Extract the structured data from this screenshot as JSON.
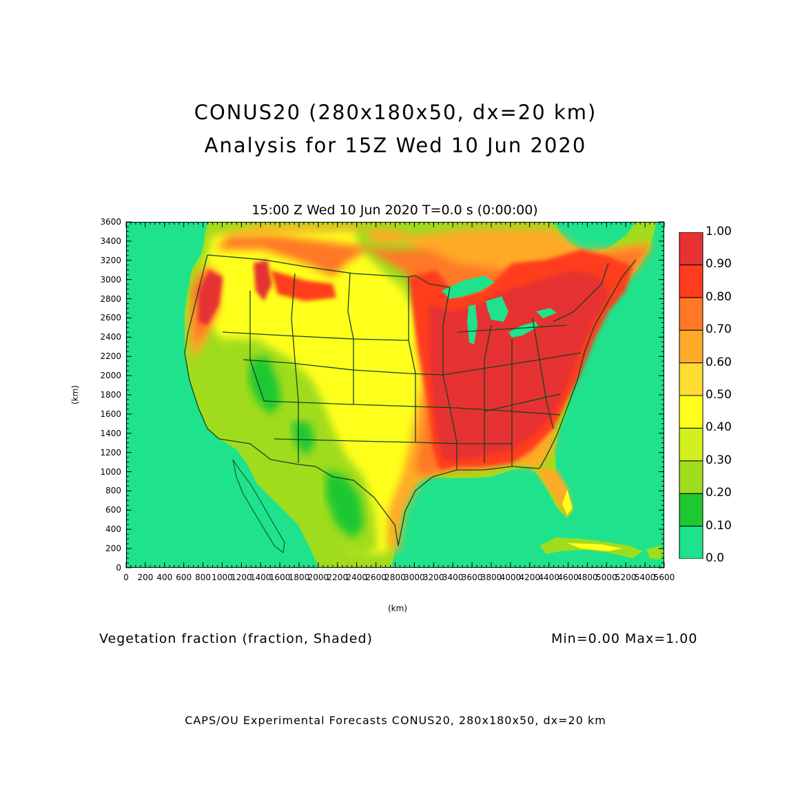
{
  "header": {
    "title_line1": "CONUS20 (280x180x50, dx=20 km)",
    "title_line2": "Analysis for 15Z Wed 10 Jun 2020"
  },
  "plot": {
    "time_title": "15:00 Z Wed 10 Jun 2020    T=0.0 s (0:00:00)",
    "xlabel": "(km)",
    "ylabel": "(km)",
    "xticks": [
      "0",
      "200",
      "400",
      "600",
      "800",
      "1000",
      "1200",
      "1400",
      "1600",
      "1800",
      "2000",
      "2200",
      "2400",
      "2600",
      "2800",
      "3000",
      "3200",
      "3400",
      "3600",
      "3800",
      "4000",
      "4200",
      "4400",
      "4600",
      "4800",
      "5000",
      "5200",
      "5400",
      "5600"
    ],
    "yticks": [
      "0",
      "200",
      "400",
      "600",
      "800",
      "1000",
      "1200",
      "1400",
      "1600",
      "1800",
      "2000",
      "2200",
      "2400",
      "2600",
      "2800",
      "3000",
      "3200",
      "3400",
      "3600"
    ],
    "xlim": [
      0,
      5600
    ],
    "ylim": [
      0,
      3600
    ]
  },
  "colorbar": {
    "labels": [
      "0.0",
      "0.10",
      "0.20",
      "0.30",
      "0.40",
      "0.50",
      "0.60",
      "0.70",
      "0.80",
      "0.90",
      "1.00"
    ],
    "colors": [
      "#1ee38c",
      "#1ec832",
      "#a0dc1e",
      "#d2f01e",
      "#ffff1e",
      "#ffdc32",
      "#ffaa28",
      "#ff7828",
      "#ff3c1e",
      "#e63232"
    ]
  },
  "footer": {
    "field_text": "Vegetation fraction (fraction, Shaded)",
    "minmax_text": "Min=0.00  Max=1.00",
    "credits": "CAPS/OU Experimental Forecasts  CONUS20, 280x180x50, dx=20 km"
  }
}
